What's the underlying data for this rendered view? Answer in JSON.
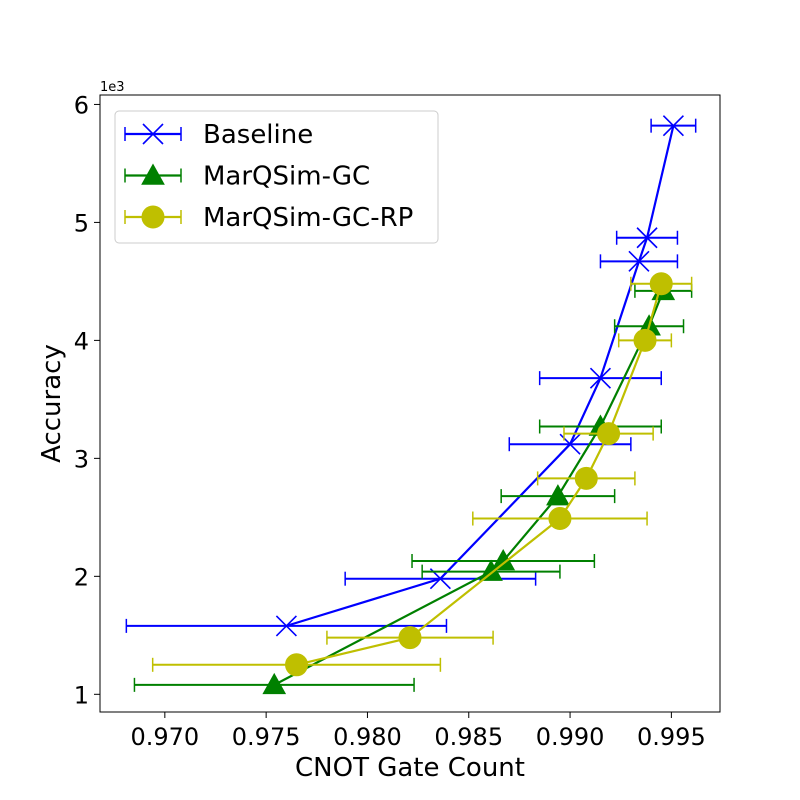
{
  "chart_data": {
    "type": "line",
    "title": "",
    "xlabel": "CNOT Gate Count",
    "ylabel": "Accuracy",
    "y_offset_label": "1e3",
    "xlim": [
      0.9668,
      0.9974
    ],
    "ylim": [
      0.85,
      6.08
    ],
    "xticks": [
      0.97,
      0.975,
      0.98,
      0.985,
      0.99,
      0.995
    ],
    "xtick_labels": [
      "0.970",
      "0.975",
      "0.980",
      "0.985",
      "0.990",
      "0.995"
    ],
    "yticks": [
      1,
      2,
      3,
      4,
      5,
      6
    ],
    "ytick_labels": [
      "1",
      "2",
      "3",
      "4",
      "5",
      "6"
    ],
    "grid": false,
    "legend_position": "top-left",
    "series": [
      {
        "name": "Baseline",
        "color": "#0000ff",
        "marker": "x",
        "points": [
          {
            "x": 0.976,
            "y": 1.58,
            "xerr": 0.0079
          },
          {
            "x": 0.9836,
            "y": 1.98,
            "xerr": 0.0047
          },
          {
            "x": 0.99,
            "y": 3.12,
            "xerr": 0.003
          },
          {
            "x": 0.9915,
            "y": 3.68,
            "xerr": 0.003
          },
          {
            "x": 0.9934,
            "y": 4.67,
            "xerr": 0.0019
          },
          {
            "x": 0.9938,
            "y": 4.87,
            "xerr": 0.0015
          },
          {
            "x": 0.9951,
            "y": 5.82,
            "xerr": 0.0011
          }
        ]
      },
      {
        "name": "MarQSim-GC",
        "color": "#008000",
        "marker": "triangle",
        "points": [
          {
            "x": 0.9754,
            "y": 1.08,
            "xerr": 0.0069
          },
          {
            "x": 0.9861,
            "y": 2.04,
            "xerr": 0.0034
          },
          {
            "x": 0.9867,
            "y": 2.13,
            "xerr": 0.0045
          },
          {
            "x": 0.9894,
            "y": 2.68,
            "xerr": 0.0028
          },
          {
            "x": 0.9915,
            "y": 3.27,
            "xerr": 0.003
          },
          {
            "x": 0.9939,
            "y": 4.12,
            "xerr": 0.0017
          },
          {
            "x": 0.9946,
            "y": 4.42,
            "xerr": 0.0014
          }
        ]
      },
      {
        "name": "MarQSim-GC-RP",
        "color": "#bfbf00",
        "marker": "circle",
        "points": [
          {
            "x": 0.9765,
            "y": 1.25,
            "xerr": 0.0071
          },
          {
            "x": 0.9821,
            "y": 1.48,
            "xerr": 0.0041
          },
          {
            "x": 0.9895,
            "y": 2.49,
            "xerr": 0.0043
          },
          {
            "x": 0.9908,
            "y": 2.83,
            "xerr": 0.0024
          },
          {
            "x": 0.9919,
            "y": 3.21,
            "xerr": 0.0022
          },
          {
            "x": 0.9937,
            "y": 4.0,
            "xerr": 0.0013
          },
          {
            "x": 0.9945,
            "y": 4.48,
            "xerr": 0.0015
          }
        ]
      }
    ]
  }
}
